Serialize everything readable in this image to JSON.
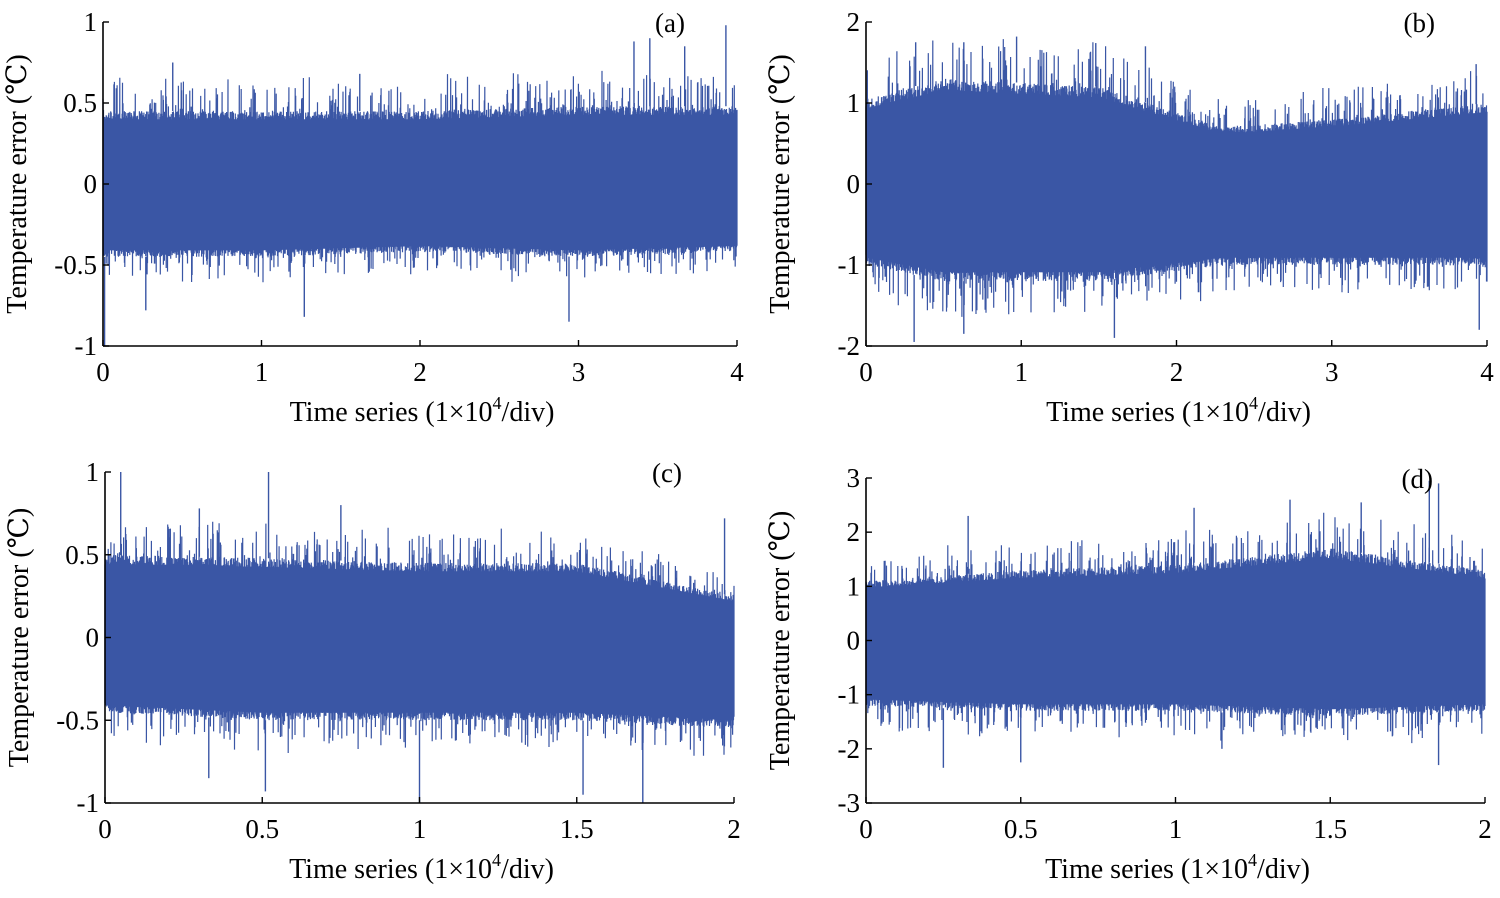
{
  "figure": {
    "signal_color": "#3a56a5",
    "axis_color": "#000000"
  },
  "chart_data": [
    {
      "type": "line",
      "panel_label": "(a)",
      "xlabel_main": "Time  series (1×10",
      "xlabel_sup": "4",
      "xlabel_end": "/div)",
      "ylabel": "Temperature  error (℃)",
      "xlim": [
        0,
        4
      ],
      "ylim": [
        -1,
        1
      ],
      "xticks": [
        0,
        1,
        2,
        3,
        4
      ],
      "xtick_labels": [
        "0",
        "1",
        "2",
        "3",
        "4"
      ],
      "yticks": [
        -1,
        -0.5,
        0,
        0.5,
        1
      ],
      "ytick_labels": [
        "-1",
        "-0.5",
        "0",
        "0.5",
        "1"
      ],
      "series": [
        {
          "x_range": [
            0,
            4
          ],
          "mean": -0.05,
          "envelope": [
            {
              "x": 0,
              "lo": -0.45,
              "hi": 0.45
            },
            {
              "x": 1,
              "lo": -0.45,
              "hi": 0.45
            },
            {
              "x": 2,
              "lo": -0.42,
              "hi": 0.45
            },
            {
              "x": 3,
              "lo": -0.45,
              "hi": 0.48
            },
            {
              "x": 4,
              "lo": -0.42,
              "hi": 0.48
            }
          ],
          "spikes": [
            {
              "x": 0.01,
              "y": -1.0
            },
            {
              "x": 0.27,
              "y": -0.78
            },
            {
              "x": 1.27,
              "y": -0.82
            },
            {
              "x": 2.94,
              "y": -0.85
            },
            {
              "x": 3.35,
              "y": 0.88
            },
            {
              "x": 3.45,
              "y": 0.9
            },
            {
              "x": 3.93,
              "y": 0.98
            },
            {
              "x": 3.67,
              "y": 0.85
            },
            {
              "x": 1.62,
              "y": 0.68
            },
            {
              "x": 0.44,
              "y": 0.75
            }
          ]
        }
      ]
    },
    {
      "type": "line",
      "panel_label": "(b)",
      "xlabel_main": "Time  series (1×10",
      "xlabel_sup": "4",
      "xlabel_end": "/div)",
      "ylabel": "Temperature  error (℃)",
      "xlim": [
        0,
        4
      ],
      "ylim": [
        -2,
        2
      ],
      "xticks": [
        0,
        1,
        2,
        3,
        4
      ],
      "xtick_labels": [
        "0",
        "1",
        "2",
        "3",
        "4"
      ],
      "yticks": [
        -2,
        -1,
        0,
        1,
        2
      ],
      "ytick_labels": [
        "-2",
        "-1",
        "0",
        "1",
        "2"
      ],
      "series": [
        {
          "x_range": [
            0,
            4
          ],
          "mean": -0.1,
          "envelope": [
            {
              "x": 0,
              "lo": -1.0,
              "hi": 1.05
            },
            {
              "x": 0.5,
              "lo": -1.2,
              "hi": 1.3
            },
            {
              "x": 1.5,
              "lo": -1.2,
              "hi": 1.2
            },
            {
              "x": 2.3,
              "lo": -1.0,
              "hi": 0.7
            },
            {
              "x": 3,
              "lo": -1.0,
              "hi": 0.8
            },
            {
              "x": 4,
              "lo": -1.0,
              "hi": 1.0
            }
          ],
          "spikes": [
            {
              "x": 0.32,
              "y": 1.75
            },
            {
              "x": 0.63,
              "y": 1.75
            },
            {
              "x": 0.97,
              "y": 1.82
            },
            {
              "x": 1.48,
              "y": 1.74
            },
            {
              "x": 1.8,
              "y": 1.7
            },
            {
              "x": 0.31,
              "y": -1.95
            },
            {
              "x": 0.63,
              "y": -1.85
            },
            {
              "x": 1.6,
              "y": -1.9
            },
            {
              "x": 3.95,
              "y": -1.8
            },
            {
              "x": 3.93,
              "y": 1.48
            }
          ]
        }
      ]
    },
    {
      "type": "line",
      "panel_label": "(c)",
      "xlabel_main": "Time  series (1×10",
      "xlabel_sup": "4",
      "xlabel_end": "/div)",
      "ylabel": "Temperature  error (℃)",
      "xlim": [
        0,
        2
      ],
      "ylim": [
        -1,
        1
      ],
      "xticks": [
        0,
        0.5,
        1,
        1.5,
        2
      ],
      "xtick_labels": [
        "0",
        "0.5",
        "1",
        "1.5",
        "2"
      ],
      "yticks": [
        -1,
        -0.5,
        0,
        0.5,
        1
      ],
      "ytick_labels": [
        "-1",
        "-0.5",
        "0",
        "0.5",
        "1"
      ],
      "series": [
        {
          "x_range": [
            0,
            2
          ],
          "mean": -0.05,
          "envelope": [
            {
              "x": 0,
              "lo": -0.45,
              "hi": 0.5
            },
            {
              "x": 0.5,
              "lo": -0.5,
              "hi": 0.48
            },
            {
              "x": 1,
              "lo": -0.5,
              "hi": 0.45
            },
            {
              "x": 1.5,
              "lo": -0.5,
              "hi": 0.45
            },
            {
              "x": 2,
              "lo": -0.55,
              "hi": 0.25
            }
          ],
          "spikes": [
            {
              "x": 0.05,
              "y": 1.0
            },
            {
              "x": 0.52,
              "y": 1.0
            },
            {
              "x": 0.3,
              "y": 0.78
            },
            {
              "x": 0.75,
              "y": 0.8
            },
            {
              "x": 0.33,
              "y": -0.85
            },
            {
              "x": 0.51,
              "y": -0.93
            },
            {
              "x": 1.0,
              "y": -1.0
            },
            {
              "x": 1.52,
              "y": -0.95
            },
            {
              "x": 1.71,
              "y": -1.0
            },
            {
              "x": 1.97,
              "y": 0.72
            }
          ]
        }
      ]
    },
    {
      "type": "line",
      "panel_label": "(d)",
      "xlabel_main": "Time  series (1×10",
      "xlabel_sup": "4",
      "xlabel_end": "/div)",
      "ylabel": "Temperature  error (℃)",
      "xlim": [
        0,
        2
      ],
      "ylim": [
        -3,
        3
      ],
      "xticks": [
        0,
        0.5,
        1,
        1.5,
        2
      ],
      "xtick_labels": [
        "0",
        "0.5",
        "1",
        "1.5",
        "2"
      ],
      "yticks": [
        -3,
        -2,
        -1,
        0,
        1,
        2,
        3
      ],
      "ytick_labels": [
        "-3",
        "-2",
        "-1",
        "0",
        "1",
        "2",
        "3"
      ],
      "series": [
        {
          "x_range": [
            0,
            2
          ],
          "mean": -0.1,
          "envelope": [
            {
              "x": 0,
              "lo": -1.2,
              "hi": 1.1
            },
            {
              "x": 0.5,
              "lo": -1.3,
              "hi": 1.3
            },
            {
              "x": 1,
              "lo": -1.3,
              "hi": 1.4
            },
            {
              "x": 1.5,
              "lo": -1.4,
              "hi": 1.7
            },
            {
              "x": 2,
              "lo": -1.3,
              "hi": 1.3
            }
          ],
          "spikes": [
            {
              "x": 0.25,
              "y": -2.35
            },
            {
              "x": 0.5,
              "y": -2.25
            },
            {
              "x": 1.82,
              "y": 2.95
            },
            {
              "x": 1.85,
              "y": 2.9
            },
            {
              "x": 1.37,
              "y": 2.6
            },
            {
              "x": 1.06,
              "y": 2.45
            },
            {
              "x": 1.6,
              "y": 2.55
            },
            {
              "x": 1.15,
              "y": -2.0
            },
            {
              "x": 1.85,
              "y": -2.3
            },
            {
              "x": 0.33,
              "y": 2.3
            }
          ]
        }
      ]
    }
  ]
}
